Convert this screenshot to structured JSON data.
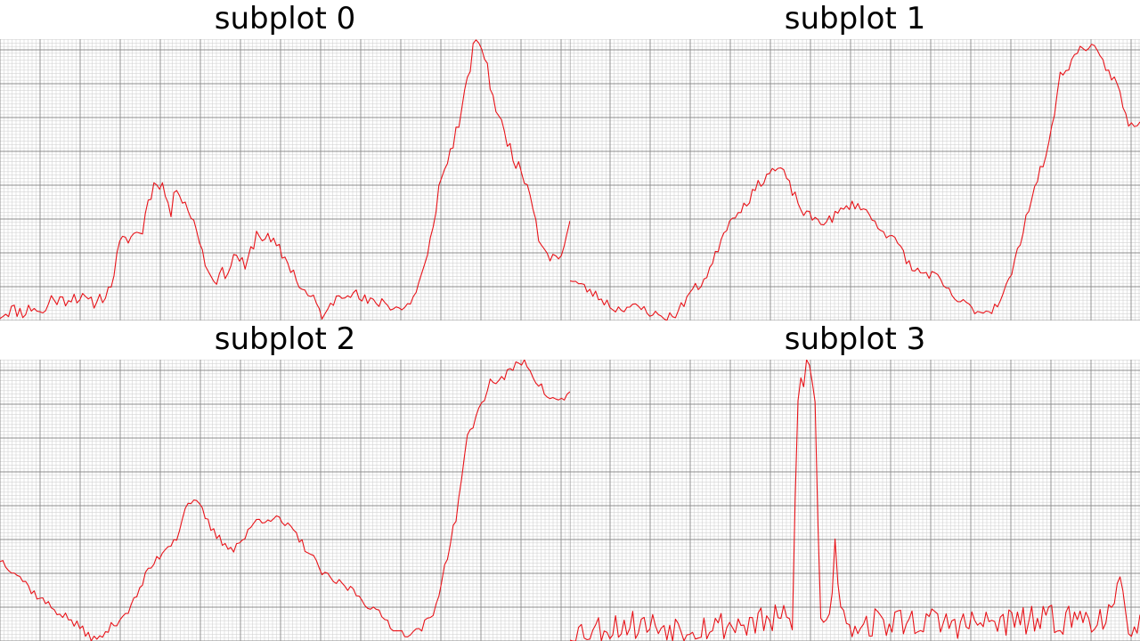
{
  "style": {
    "line_color": "#e8141a",
    "grid_major": "#8c8c8c",
    "grid_minor": "#d4d4d4",
    "background": "#ffffff"
  },
  "chart_data": [
    {
      "type": "line",
      "title": "subplot 0",
      "grid": true,
      "xlim": [
        0,
        200
      ],
      "ylim": [
        0,
        100
      ],
      "x_major": 45,
      "x_minor": 4.5,
      "y_major": 38,
      "y_minor": 3.8,
      "anchors": [
        [
          0,
          2
        ],
        [
          4,
          4
        ],
        [
          8,
          3
        ],
        [
          12,
          5
        ],
        [
          15,
          2
        ],
        [
          18,
          8
        ],
        [
          22,
          7
        ],
        [
          26,
          9
        ],
        [
          32,
          6
        ],
        [
          38,
          10
        ],
        [
          40,
          17
        ],
        [
          42,
          27
        ],
        [
          46,
          30
        ],
        [
          50,
          32
        ],
        [
          52,
          43
        ],
        [
          55,
          50
        ],
        [
          57,
          48
        ],
        [
          60,
          38
        ],
        [
          62,
          48
        ],
        [
          64,
          44
        ],
        [
          66,
          40
        ],
        [
          70,
          29
        ],
        [
          73,
          17
        ],
        [
          76,
          15
        ],
        [
          80,
          18
        ],
        [
          83,
          24
        ],
        [
          86,
          18
        ],
        [
          90,
          31
        ],
        [
          94,
          29
        ],
        [
          98,
          25
        ],
        [
          102,
          19
        ],
        [
          106,
          11
        ],
        [
          110,
          7
        ],
        [
          114,
          1
        ],
        [
          118,
          9
        ],
        [
          122,
          11
        ],
        [
          126,
          8
        ],
        [
          130,
          6
        ],
        [
          134,
          7
        ],
        [
          138,
          5
        ],
        [
          142,
          4
        ],
        [
          146,
          10
        ],
        [
          150,
          22
        ],
        [
          154,
          47
        ],
        [
          158,
          60
        ],
        [
          162,
          74
        ],
        [
          166,
          96
        ],
        [
          168,
          100
        ],
        [
          170,
          94
        ],
        [
          172,
          84
        ],
        [
          175,
          72
        ],
        [
          178,
          64
        ],
        [
          182,
          54
        ],
        [
          186,
          47
        ],
        [
          189,
          30
        ],
        [
          193,
          23
        ],
        [
          196,
          22
        ],
        [
          200,
          33
        ]
      ],
      "noise": 2.5,
      "seed": 11
    },
    {
      "type": "line",
      "title": "subplot 1",
      "grid": true,
      "xlim": [
        0,
        200
      ],
      "ylim": [
        0,
        100
      ],
      "x_major": 45,
      "x_minor": 4.5,
      "y_major": 38,
      "y_minor": 3.8,
      "anchors": [
        [
          0,
          15
        ],
        [
          6,
          11
        ],
        [
          12,
          7
        ],
        [
          16,
          4
        ],
        [
          20,
          5
        ],
        [
          26,
          4
        ],
        [
          30,
          2
        ],
        [
          34,
          1
        ],
        [
          38,
          3
        ],
        [
          42,
          10
        ],
        [
          46,
          13
        ],
        [
          50,
          20
        ],
        [
          54,
          32
        ],
        [
          58,
          38
        ],
        [
          62,
          42
        ],
        [
          66,
          48
        ],
        [
          70,
          53
        ],
        [
          74,
          54
        ],
        [
          78,
          46
        ],
        [
          82,
          38
        ],
        [
          86,
          36
        ],
        [
          90,
          35
        ],
        [
          94,
          38
        ],
        [
          98,
          41
        ],
        [
          102,
          41
        ],
        [
          106,
          36
        ],
        [
          112,
          30
        ],
        [
          116,
          26
        ],
        [
          120,
          18
        ],
        [
          124,
          17
        ],
        [
          128,
          16
        ],
        [
          132,
          11
        ],
        [
          136,
          7
        ],
        [
          140,
          5
        ],
        [
          144,
          3
        ],
        [
          148,
          4
        ],
        [
          152,
          9
        ],
        [
          156,
          20
        ],
        [
          160,
          37
        ],
        [
          164,
          50
        ],
        [
          168,
          62
        ],
        [
          172,
          87
        ],
        [
          176,
          92
        ],
        [
          180,
          98
        ],
        [
          184,
          96
        ],
        [
          188,
          90
        ],
        [
          192,
          84
        ],
        [
          196,
          69
        ],
        [
          200,
          71
        ]
      ],
      "noise": 1.8,
      "seed": 23
    },
    {
      "type": "line",
      "title": "subplot 2",
      "grid": true,
      "xlim": [
        0,
        200
      ],
      "ylim": [
        0,
        100
      ],
      "x_major": 45,
      "x_minor": 4.5,
      "y_major": 38,
      "y_minor": 3.8,
      "anchors": [
        [
          0,
          29
        ],
        [
          6,
          24
        ],
        [
          12,
          17
        ],
        [
          18,
          12
        ],
        [
          24,
          8
        ],
        [
          30,
          3
        ],
        [
          34,
          0
        ],
        [
          40,
          6
        ],
        [
          46,
          12
        ],
        [
          52,
          25
        ],
        [
          58,
          33
        ],
        [
          62,
          37
        ],
        [
          66,
          50
        ],
        [
          70,
          48
        ],
        [
          74,
          40
        ],
        [
          78,
          35
        ],
        [
          82,
          33
        ],
        [
          86,
          37
        ],
        [
          90,
          43
        ],
        [
          96,
          44
        ],
        [
          102,
          40
        ],
        [
          108,
          32
        ],
        [
          114,
          23
        ],
        [
          118,
          21
        ],
        [
          124,
          18
        ],
        [
          130,
          12
        ],
        [
          136,
          7
        ],
        [
          140,
          3
        ],
        [
          146,
          3
        ],
        [
          152,
          9
        ],
        [
          156,
          26
        ],
        [
          160,
          44
        ],
        [
          164,
          72
        ],
        [
          168,
          82
        ],
        [
          172,
          92
        ],
        [
          176,
          93
        ],
        [
          180,
          97
        ],
        [
          184,
          100
        ],
        [
          188,
          93
        ],
        [
          192,
          87
        ],
        [
          196,
          85
        ],
        [
          200,
          88
        ]
      ],
      "noise": 1.6,
      "seed": 37
    },
    {
      "type": "line",
      "title": "subplot 3",
      "grid": true,
      "xlim": [
        0,
        200
      ],
      "ylim": [
        0,
        100
      ],
      "x_major": 45,
      "x_minor": 4.5,
      "y_major": 38,
      "y_minor": 3.8,
      "anchors": [
        [
          0,
          3
        ],
        [
          20,
          6
        ],
        [
          40,
          5
        ],
        [
          60,
          6
        ],
        [
          70,
          7
        ],
        [
          75,
          8
        ],
        [
          78,
          6
        ],
        [
          80,
          88
        ],
        [
          82,
          95
        ],
        [
          83,
          100
        ],
        [
          85,
          92
        ],
        [
          86,
          85
        ],
        [
          87,
          40
        ],
        [
          88,
          10
        ],
        [
          90,
          5
        ],
        [
          92,
          20
        ],
        [
          93,
          33
        ],
        [
          95,
          15
        ],
        [
          98,
          6
        ],
        [
          120,
          7
        ],
        [
          140,
          6
        ],
        [
          160,
          7
        ],
        [
          180,
          8
        ],
        [
          190,
          9
        ],
        [
          193,
          18
        ],
        [
          196,
          7
        ],
        [
          200,
          5
        ]
      ],
      "noise": 5.5,
      "seed": 53
    }
  ]
}
